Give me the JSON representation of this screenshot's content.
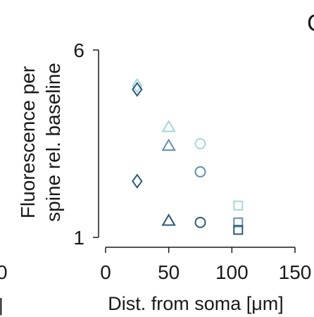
{
  "panel_label_partial": "C",
  "left_edge": {
    "tick_label": "0",
    "bar_mark": "|"
  },
  "chart_data": {
    "type": "scatter",
    "title": "",
    "xlabel": "Dist. from soma [μm]",
    "ylabel": [
      "Fluorescence per",
      "spine rel. baseline"
    ],
    "xlim": [
      0,
      150
    ],
    "ylim": [
      1,
      6
    ],
    "x_ticks": [
      0,
      50,
      100,
      150
    ],
    "y_ticks": [
      1,
      6
    ],
    "grid": false,
    "legend": "none",
    "points": [
      {
        "x": 25,
        "y": 5.05,
        "marker": "diamond",
        "color": "#a6d6dc"
      },
      {
        "x": 25,
        "y": 4.95,
        "marker": "diamond",
        "color": "#2d5a78"
      },
      {
        "x": 25,
        "y": 2.5,
        "marker": "diamond",
        "color": "#2d5a78"
      },
      {
        "x": 50,
        "y": 3.95,
        "marker": "triangle",
        "color": "#a6d6dc"
      },
      {
        "x": 50,
        "y": 3.45,
        "marker": "triangle",
        "color": "#5e92ab"
      },
      {
        "x": 50,
        "y": 1.45,
        "marker": "triangle",
        "color": "#2d5a78"
      },
      {
        "x": 75,
        "y": 3.5,
        "marker": "circle",
        "color": "#a6d6dc"
      },
      {
        "x": 75,
        "y": 2.75,
        "marker": "circle",
        "color": "#5e92ab"
      },
      {
        "x": 75,
        "y": 1.4,
        "marker": "circle",
        "color": "#2d5a78"
      },
      {
        "x": 105,
        "y": 1.85,
        "marker": "square",
        "color": "#a6d6dc"
      },
      {
        "x": 105,
        "y": 1.4,
        "marker": "square",
        "color": "#5e92ab"
      },
      {
        "x": 105,
        "y": 1.2,
        "marker": "square",
        "color": "#2d5a78"
      }
    ]
  }
}
